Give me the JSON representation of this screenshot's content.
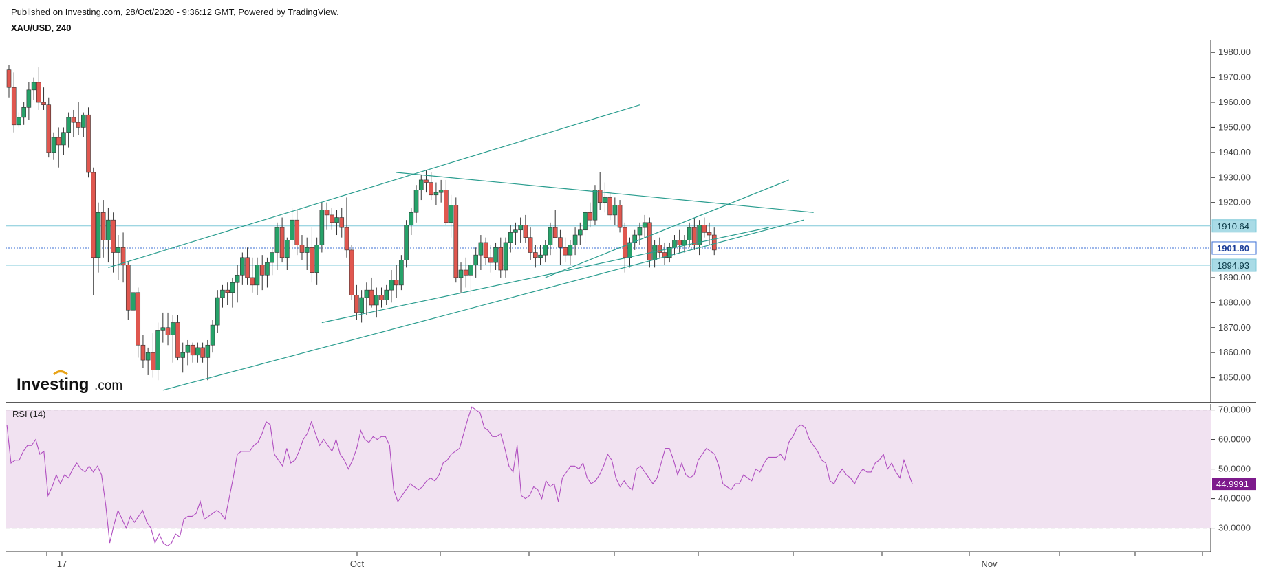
{
  "header": {
    "published": "Published on Investing.com, 28/Oct/2020 - 9:36:12 GMT, Powered by TradingView.",
    "symbol": "XAU/USD, 240"
  },
  "logo": {
    "text": "Investing",
    "suffix": ".com"
  },
  "colors": {
    "bull": "#26a269",
    "bear": "#e0574f",
    "trendline": "#2a9d8f",
    "hline": "#7ec8d8",
    "current": "#3b6fd6",
    "rsi_line": "#b04ec0",
    "rsi_band": "#f1e2f1",
    "rsi_tag": "#7d1a8c"
  },
  "chart_data": [
    {
      "type": "candlestick",
      "title": "XAU/USD, 240",
      "ylim": [
        1840,
        1985
      ],
      "y_ticks": [
        "1980.00",
        "1970.00",
        "1960.00",
        "1950.00",
        "1940.00",
        "1930.00",
        "1920.00",
        "1890.00",
        "1880.00",
        "1870.00",
        "1860.00",
        "1850.00"
      ],
      "x_ticks": [
        "17",
        "Oct",
        "Nov"
      ],
      "x_range": [
        0,
        160
      ],
      "price_labels": [
        {
          "text": "1910.64",
          "value": 1910.64,
          "style": "hline"
        },
        {
          "text": "1901.80",
          "value": 1901.8,
          "style": "current"
        },
        {
          "text": "1894.93",
          "value": 1894.93,
          "style": "hline"
        }
      ],
      "candles": [
        [
          1973,
          1975,
          1962,
          1966
        ],
        [
          1966,
          1972,
          1948,
          1951
        ],
        [
          1951,
          1956,
          1950,
          1954
        ],
        [
          1954,
          1960,
          1951,
          1958
        ],
        [
          1958,
          1968,
          1953,
          1965
        ],
        [
          1965,
          1970,
          1961,
          1968
        ],
        [
          1968,
          1974,
          1957,
          1960
        ],
        [
          1960,
          1966,
          1957,
          1959
        ],
        [
          1959,
          1962,
          1938,
          1940
        ],
        [
          1940,
          1948,
          1937,
          1946
        ],
        [
          1946,
          1950,
          1934,
          1943
        ],
        [
          1943,
          1950,
          1939,
          1948
        ],
        [
          1948,
          1956,
          1942,
          1954
        ],
        [
          1954,
          1957,
          1946,
          1952
        ],
        [
          1952,
          1960,
          1947,
          1950
        ],
        [
          1950,
          1956,
          1946,
          1955
        ],
        [
          1955,
          1958,
          1930,
          1932
        ],
        [
          1932,
          1934,
          1883,
          1898
        ],
        [
          1898,
          1920,
          1892,
          1916
        ],
        [
          1916,
          1921,
          1898,
          1905
        ],
        [
          1905,
          1918,
          1896,
          1913
        ],
        [
          1913,
          1916,
          1892,
          1900
        ],
        [
          1900,
          1907,
          1889,
          1902
        ],
        [
          1902,
          1908,
          1888,
          1895
        ],
        [
          1895,
          1896,
          1873,
          1877
        ],
        [
          1877,
          1886,
          1870,
          1884
        ],
        [
          1884,
          1886,
          1858,
          1863
        ],
        [
          1863,
          1867,
          1854,
          1857
        ],
        [
          1857,
          1862,
          1851,
          1860
        ],
        [
          1860,
          1868,
          1850,
          1853
        ],
        [
          1853,
          1872,
          1849,
          1869
        ],
        [
          1869,
          1876,
          1864,
          1870
        ],
        [
          1870,
          1876,
          1863,
          1867
        ],
        [
          1867,
          1875,
          1856,
          1872
        ],
        [
          1872,
          1875,
          1857,
          1858
        ],
        [
          1858,
          1864,
          1852,
          1860
        ],
        [
          1860,
          1865,
          1855,
          1863
        ],
        [
          1863,
          1864,
          1856,
          1859
        ],
        [
          1859,
          1864,
          1856,
          1862
        ],
        [
          1862,
          1864,
          1856,
          1858
        ],
        [
          1858,
          1865,
          1849,
          1863
        ],
        [
          1863,
          1873,
          1860,
          1871
        ],
        [
          1871,
          1885,
          1868,
          1882
        ],
        [
          1882,
          1887,
          1878,
          1885
        ],
        [
          1885,
          1888,
          1879,
          1884
        ],
        [
          1884,
          1890,
          1878,
          1888
        ],
        [
          1888,
          1895,
          1880,
          1891
        ],
        [
          1891,
          1900,
          1887,
          1898
        ],
        [
          1898,
          1902,
          1887,
          1890
        ],
        [
          1890,
          1898,
          1884,
          1887
        ],
        [
          1887,
          1898,
          1883,
          1895
        ],
        [
          1895,
          1899,
          1885,
          1891
        ],
        [
          1891,
          1898,
          1886,
          1896
        ],
        [
          1896,
          1902,
          1891,
          1900
        ],
        [
          1900,
          1912,
          1893,
          1910
        ],
        [
          1910,
          1914,
          1896,
          1898
        ],
        [
          1898,
          1906,
          1893,
          1905
        ],
        [
          1905,
          1918,
          1901,
          1913
        ],
        [
          1913,
          1917,
          1899,
          1903
        ],
        [
          1903,
          1907,
          1897,
          1900
        ],
        [
          1900,
          1906,
          1893,
          1902
        ],
        [
          1902,
          1910,
          1888,
          1892
        ],
        [
          1892,
          1906,
          1887,
          1903
        ],
        [
          1903,
          1920,
          1900,
          1917
        ],
        [
          1917,
          1920,
          1909,
          1915
        ],
        [
          1915,
          1918,
          1909,
          1912
        ],
        [
          1912,
          1917,
          1907,
          1914
        ],
        [
          1914,
          1918,
          1906,
          1910
        ],
        [
          1910,
          1922,
          1898,
          1901
        ],
        [
          1901,
          1903,
          1881,
          1883
        ],
        [
          1883,
          1887,
          1873,
          1876
        ],
        [
          1876,
          1885,
          1872,
          1882
        ],
        [
          1882,
          1888,
          1875,
          1885
        ],
        [
          1885,
          1890,
          1878,
          1879
        ],
        [
          1879,
          1886,
          1874,
          1883
        ],
        [
          1883,
          1886,
          1878,
          1881
        ],
        [
          1881,
          1887,
          1879,
          1885
        ],
        [
          1885,
          1893,
          1880,
          1889
        ],
        [
          1889,
          1895,
          1882,
          1887
        ],
        [
          1887,
          1899,
          1885,
          1897
        ],
        [
          1897,
          1913,
          1894,
          1911
        ],
        [
          1911,
          1918,
          1907,
          1916
        ],
        [
          1916,
          1927,
          1912,
          1925
        ],
        [
          1925,
          1931,
          1921,
          1929
        ],
        [
          1929,
          1933,
          1924,
          1928
        ],
        [
          1928,
          1932,
          1921,
          1923
        ],
        [
          1923,
          1928,
          1919,
          1924
        ],
        [
          1924,
          1929,
          1920,
          1925
        ],
        [
          1925,
          1929,
          1911,
          1912
        ],
        [
          1912,
          1923,
          1906,
          1919
        ],
        [
          1919,
          1922,
          1888,
          1890
        ],
        [
          1890,
          1896,
          1884,
          1893
        ],
        [
          1893,
          1898,
          1886,
          1891
        ],
        [
          1891,
          1896,
          1883,
          1895
        ],
        [
          1895,
          1902,
          1890,
          1899
        ],
        [
          1899,
          1907,
          1893,
          1904
        ],
        [
          1904,
          1906,
          1895,
          1898
        ],
        [
          1898,
          1903,
          1892,
          1896
        ],
        [
          1896,
          1904,
          1893,
          1902
        ],
        [
          1902,
          1906,
          1890,
          1893
        ],
        [
          1893,
          1906,
          1890,
          1904
        ],
        [
          1904,
          1911,
          1900,
          1908
        ],
        [
          1908,
          1912,
          1903,
          1909
        ],
        [
          1909,
          1914,
          1904,
          1911
        ],
        [
          1911,
          1915,
          1904,
          1906
        ],
        [
          1906,
          1910,
          1897,
          1900
        ],
        [
          1900,
          1903,
          1894,
          1898
        ],
        [
          1898,
          1903,
          1895,
          1899
        ],
        [
          1899,
          1905,
          1896,
          1903
        ],
        [
          1903,
          1912,
          1899,
          1910
        ],
        [
          1910,
          1917,
          1906,
          1906
        ],
        [
          1906,
          1909,
          1895,
          1902
        ],
        [
          1902,
          1906,
          1896,
          1899
        ],
        [
          1899,
          1905,
          1895,
          1903
        ],
        [
          1903,
          1910,
          1899,
          1907
        ],
        [
          1907,
          1912,
          1903,
          1909
        ],
        [
          1909,
          1917,
          1904,
          1916
        ],
        [
          1916,
          1920,
          1910,
          1913
        ],
        [
          1913,
          1927,
          1911,
          1925
        ],
        [
          1925,
          1932,
          1917,
          1920
        ],
        [
          1920,
          1928,
          1916,
          1922
        ],
        [
          1922,
          1924,
          1913,
          1915
        ],
        [
          1915,
          1922,
          1911,
          1919
        ],
        [
          1919,
          1921,
          1908,
          1910
        ],
        [
          1910,
          1912,
          1892,
          1898
        ],
        [
          1898,
          1906,
          1894,
          1904
        ],
        [
          1904,
          1909,
          1901,
          1907
        ],
        [
          1907,
          1912,
          1903,
          1910
        ],
        [
          1910,
          1915,
          1906,
          1912
        ],
        [
          1912,
          1914,
          1894,
          1897
        ],
        [
          1897,
          1905,
          1894,
          1903
        ],
        [
          1903,
          1906,
          1898,
          1900
        ],
        [
          1900,
          1904,
          1895,
          1898
        ],
        [
          1898,
          1904,
          1896,
          1902
        ],
        [
          1902,
          1907,
          1899,
          1905
        ],
        [
          1905,
          1909,
          1900,
          1903
        ],
        [
          1903,
          1907,
          1900,
          1905
        ],
        [
          1905,
          1912,
          1902,
          1910
        ],
        [
          1910,
          1914,
          1901,
          1903
        ],
        [
          1903,
          1913,
          1899,
          1911
        ],
        [
          1911,
          1914,
          1906,
          1908
        ],
        [
          1908,
          1912,
          1903,
          1907
        ],
        [
          1907,
          1910,
          1899,
          1901
        ]
      ],
      "trendlines": [
        [
          [
            20,
            1894
          ],
          [
            127,
            1959
          ]
        ],
        [
          [
            31,
            1845
          ],
          [
            160,
            1913
          ]
        ],
        [
          [
            63,
            1872
          ],
          [
            153,
            1910
          ]
        ],
        [
          [
            78,
            1932
          ],
          [
            162,
            1916
          ]
        ],
        [
          [
            108,
            1890
          ],
          [
            157,
            1929
          ]
        ]
      ]
    },
    {
      "type": "line",
      "title": "RSI (14)",
      "ylim": [
        22,
        72
      ],
      "y_ticks": [
        "70.0000",
        "60.0000",
        "50.0000",
        "40.0000",
        "30.0000"
      ],
      "band": [
        30,
        70
      ],
      "current_label": "44.9991",
      "current_value": 44.9991,
      "values": [
        65,
        52,
        53,
        53,
        56,
        58,
        58,
        60,
        55,
        56,
        41,
        44,
        48,
        45,
        48,
        47,
        50,
        52,
        50,
        49,
        51,
        49,
        51,
        48,
        38,
        25,
        31,
        36,
        33,
        30,
        34,
        32,
        34,
        36,
        32,
        30,
        25,
        28,
        25,
        24,
        25,
        28,
        27,
        33,
        34,
        34,
        35,
        39,
        33,
        34,
        35,
        36,
        35,
        33,
        40,
        47,
        55,
        56,
        56,
        56,
        58,
        59,
        62,
        66,
        65,
        55,
        53,
        51,
        57,
        52,
        53,
        56,
        60,
        62,
        66,
        62,
        58,
        60,
        58,
        56,
        60,
        55,
        53,
        50,
        53,
        57,
        63,
        60,
        59,
        61,
        60,
        61,
        61,
        58,
        43,
        39,
        41,
        43,
        45,
        44,
        43,
        44,
        46,
        47,
        46,
        48,
        52,
        53,
        55,
        56,
        57,
        62,
        67,
        71,
        70,
        69,
        64,
        63,
        61,
        61,
        62,
        57,
        51,
        49,
        58,
        41,
        40,
        41,
        44,
        43,
        40,
        46,
        44,
        45,
        39,
        47,
        49,
        51,
        51,
        50,
        52,
        47,
        45,
        46,
        48,
        51,
        55,
        53,
        47,
        44,
        46,
        44,
        43,
        50,
        51,
        49,
        47,
        45,
        47,
        52,
        57,
        57,
        53,
        48,
        52,
        48,
        47,
        48,
        53,
        55,
        57,
        56,
        55,
        51,
        45,
        44,
        43,
        45,
        45,
        48,
        47,
        46,
        50,
        49,
        52,
        54,
        54,
        54,
        55,
        53,
        59,
        61,
        64,
        65,
        64,
        60,
        58,
        56,
        53,
        52,
        46,
        45,
        48,
        50,
        48,
        47,
        45,
        48,
        50,
        49,
        49,
        52,
        53,
        55,
        50,
        52,
        49,
        47,
        53,
        49,
        45
      ]
    }
  ]
}
